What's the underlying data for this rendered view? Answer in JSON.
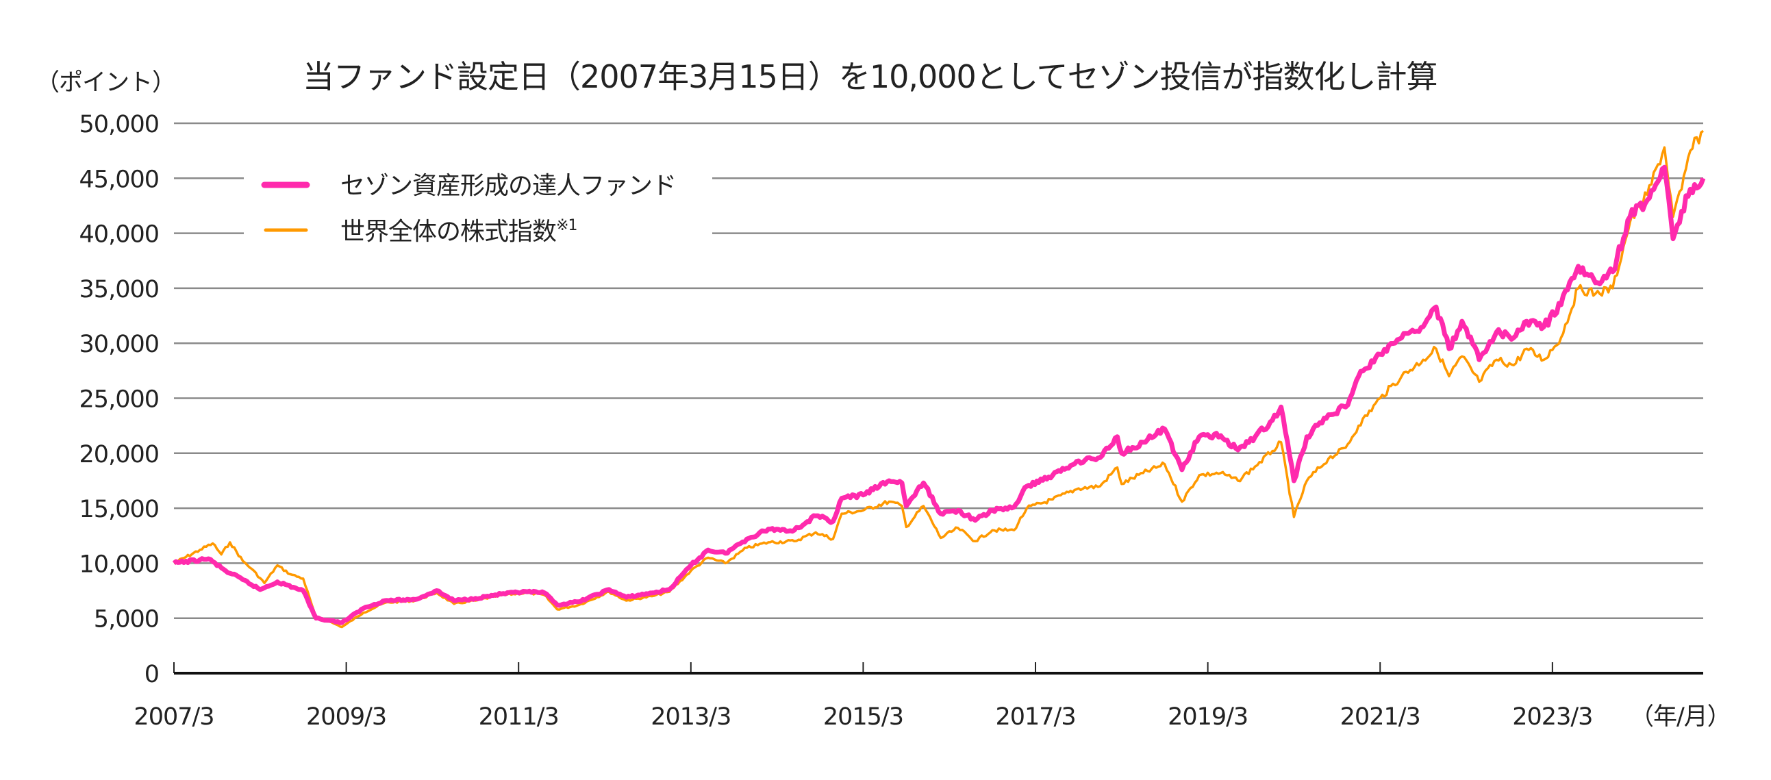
{
  "chart_data": {
    "type": "line",
    "title": "当ファンド設定日（2007年3月15日）を10,000としてセゾン投信が指数化し計算",
    "ylabel": "（ポイント）",
    "xlabel": "（年/月）",
    "ylim": [
      0,
      50000
    ],
    "xlim": [
      2007.2,
      2024.95
    ],
    "grid": true,
    "legend_position": "top-left",
    "yticks": [
      0,
      5000,
      10000,
      15000,
      20000,
      25000,
      30000,
      35000,
      40000,
      45000,
      50000
    ],
    "ytick_labels": [
      "0",
      "5,000",
      "10,000",
      "15,000",
      "20,000",
      "25,000",
      "30,000",
      "35,000",
      "40,000",
      "45,000",
      "50,000"
    ],
    "xticks": [
      2007.2,
      2009.2,
      2011.2,
      2013.2,
      2015.2,
      2017.2,
      2019.2,
      2021.2,
      2023.2
    ],
    "xtick_labels": [
      "2007/3",
      "2009/3",
      "2011/3",
      "2013/3",
      "2015/3",
      "2017/3",
      "2019/3",
      "2021/3",
      "2023/3"
    ],
    "series": [
      {
        "name": "世界全体の株式指数",
        "name_suffix": "※1",
        "color": "#ff9900",
        "x": [
          2007.2,
          2007.5,
          2007.65,
          2007.75,
          2007.85,
          2008.0,
          2008.1,
          2008.25,
          2008.4,
          2008.55,
          2008.7,
          2008.85,
          2009.0,
          2009.15,
          2009.4,
          2009.65,
          2010.0,
          2010.25,
          2010.45,
          2010.7,
          2011.0,
          2011.3,
          2011.5,
          2011.65,
          2011.9,
          2012.25,
          2012.45,
          2012.75,
          2012.95,
          2013.2,
          2013.4,
          2013.6,
          2013.85,
          2014.1,
          2014.4,
          2014.65,
          2014.85,
          2014.95,
          2015.2,
          2015.5,
          2015.65,
          2015.7,
          2015.9,
          2016.1,
          2016.3,
          2016.5,
          2016.7,
          2016.95,
          2017.1,
          2017.4,
          2017.7,
          2017.95,
          2018.15,
          2018.2,
          2018.45,
          2018.7,
          2018.9,
          2019.1,
          2019.35,
          2019.55,
          2019.75,
          2019.95,
          2020.05,
          2020.2,
          2020.35,
          2020.6,
          2020.8,
          2020.95,
          2021.2,
          2021.45,
          2021.7,
          2021.85,
          2022.0,
          2022.15,
          2022.35,
          2022.55,
          2022.75,
          2022.9,
          2023.1,
          2023.3,
          2023.5,
          2023.7,
          2023.9,
          2024.1,
          2024.3,
          2024.5,
          2024.6,
          2024.7,
          2024.8,
          2024.95
        ],
        "values": [
          10000,
          11200,
          11800,
          10800,
          11900,
          10200,
          9500,
          8200,
          9800,
          9000,
          8600,
          5000,
          4700,
          4200,
          5500,
          6400,
          6600,
          7300,
          6300,
          6600,
          7100,
          7300,
          7100,
          5800,
          6200,
          7400,
          6600,
          7000,
          7400,
          9300,
          10500,
          10000,
          11400,
          11900,
          12000,
          12800,
          12200,
          14500,
          14800,
          15600,
          15200,
          13300,
          15200,
          12300,
          13200,
          12000,
          13000,
          13000,
          15000,
          15800,
          16800,
          17000,
          18700,
          17200,
          18200,
          19000,
          15600,
          18000,
          18200,
          17500,
          18800,
          20200,
          21000,
          14200,
          17500,
          19500,
          20500,
          22500,
          25000,
          27000,
          28500,
          29500,
          27000,
          28800,
          26500,
          28500,
          28000,
          29500,
          28500,
          30500,
          35000,
          34500,
          35000,
          41000,
          43500,
          47800,
          41500,
          44000,
          47500,
          49300
        ]
      },
      {
        "name": "セゾン資産形成の達人ファンド",
        "color": "#ff2aad",
        "x": [
          2007.2,
          2007.5,
          2007.6,
          2007.8,
          2008.0,
          2008.2,
          2008.4,
          2008.7,
          2008.85,
          2009.0,
          2009.15,
          2009.4,
          2009.65,
          2010.0,
          2010.25,
          2010.45,
          2010.7,
          2011.0,
          2011.3,
          2011.5,
          2011.65,
          2011.9,
          2012.25,
          2012.45,
          2012.75,
          2012.95,
          2013.2,
          2013.4,
          2013.6,
          2013.85,
          2014.1,
          2014.4,
          2014.65,
          2014.85,
          2014.95,
          2015.2,
          2015.5,
          2015.65,
          2015.7,
          2015.9,
          2016.1,
          2016.3,
          2016.5,
          2016.7,
          2016.95,
          2017.1,
          2017.4,
          2017.7,
          2017.95,
          2018.15,
          2018.2,
          2018.45,
          2018.7,
          2018.9,
          2019.1,
          2019.35,
          2019.55,
          2019.75,
          2019.95,
          2020.05,
          2020.2,
          2020.35,
          2020.6,
          2020.8,
          2020.95,
          2021.2,
          2021.45,
          2021.7,
          2021.85,
          2022.0,
          2022.15,
          2022.35,
          2022.55,
          2022.75,
          2022.9,
          2023.1,
          2023.3,
          2023.5,
          2023.7,
          2023.9,
          2024.1,
          2024.3,
          2024.5,
          2024.6,
          2024.7,
          2024.8,
          2024.95
        ],
        "values": [
          10000,
          10300,
          10400,
          9300,
          8500,
          7600,
          8300,
          7500,
          5000,
          4800,
          4600,
          5900,
          6600,
          6700,
          7500,
          6600,
          6800,
          7200,
          7400,
          7300,
          6200,
          6500,
          7600,
          6900,
          7300,
          7600,
          9800,
          11200,
          10900,
          12200,
          13100,
          13000,
          14300,
          13800,
          15900,
          16200,
          17500,
          17300,
          15200,
          17300,
          14500,
          14800,
          13900,
          14800,
          15100,
          17000,
          18000,
          19300,
          19600,
          21500,
          20000,
          21000,
          22200,
          18500,
          21500,
          21600,
          20300,
          21500,
          23000,
          24200,
          17500,
          21500,
          23500,
          24200,
          27000,
          29000,
          30500,
          31500,
          33300,
          29500,
          32000,
          28500,
          31000,
          30500,
          32000,
          31500,
          33500,
          37000,
          35500,
          36500,
          41500,
          43000,
          46000,
          39500,
          42000,
          44000,
          45000
        ]
      }
    ]
  }
}
